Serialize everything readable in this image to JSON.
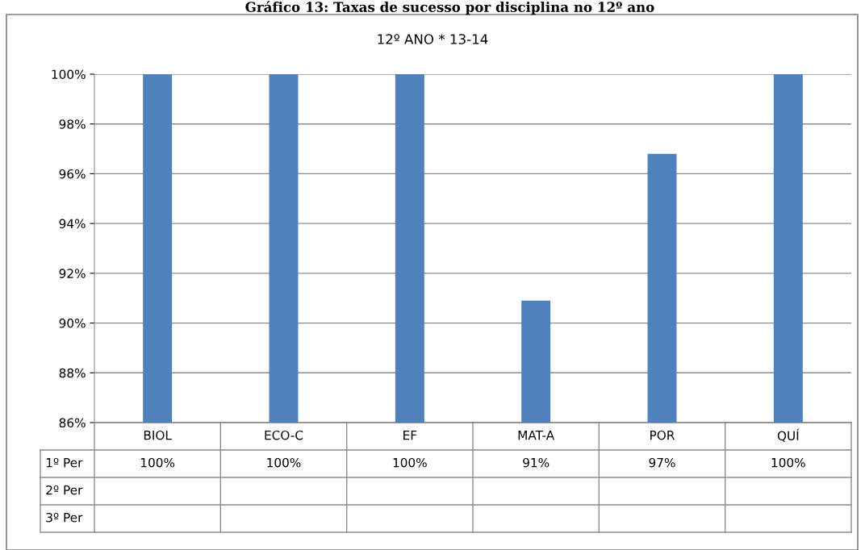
{
  "chart_data": {
    "type": "bar",
    "title": "Gráfico 13: Taxas de sucesso por disciplina no 12º ano",
    "subtitle": "12º ANO * 13-14",
    "categories": [
      "BIOL",
      "ECO-C",
      "EF",
      "MAT-A",
      "POR",
      "QUÍ"
    ],
    "series": [
      {
        "name": "1º Per",
        "color": "#4f81bd",
        "values": [
          100,
          100,
          100,
          90.9,
          96.8,
          100
        ],
        "value_labels": [
          "100%",
          "100%",
          "100%",
          "91%",
          "97%",
          "100%"
        ]
      },
      {
        "name": "2º Per",
        "values": [
          null,
          null,
          null,
          null,
          null,
          null
        ]
      },
      {
        "name": "3º Per",
        "values": [
          null,
          null,
          null,
          null,
          null,
          null
        ]
      }
    ],
    "ylim": [
      86,
      100
    ],
    "yticks": [
      {
        "value": 86,
        "label": "86%"
      },
      {
        "value": 88,
        "label": "88%"
      },
      {
        "value": 90,
        "label": "90%"
      },
      {
        "value": 92,
        "label": "92%"
      },
      {
        "value": 94,
        "label": "94%"
      },
      {
        "value": 96,
        "label": "96%"
      },
      {
        "value": 98,
        "label": "98%"
      },
      {
        "value": 100,
        "label": "100%"
      }
    ],
    "grid": "y",
    "legend": false
  }
}
